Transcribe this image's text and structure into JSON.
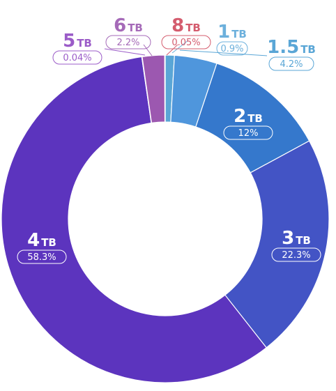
{
  "chart_data": {
    "type": "pie",
    "variant": "donut",
    "slices": [
      {
        "num": "1",
        "unit": "TB",
        "pct_label": "0.9%",
        "value": 0.9,
        "color": "#5aa6d6",
        "label_color": "#6cb0dc",
        "label_side": "outside"
      },
      {
        "num": "1.5",
        "unit": "TB",
        "pct_label": "4.2%",
        "value": 4.2,
        "color": "#4f96dc",
        "label_color": "#5aa6d6",
        "label_side": "outside"
      },
      {
        "num": "2",
        "unit": "TB",
        "pct_label": "12%",
        "value": 12.0,
        "color": "#3578cc",
        "label_color": "#ffffff",
        "label_side": "inside"
      },
      {
        "num": "3",
        "unit": "TB",
        "pct_label": "22.3%",
        "value": 22.3,
        "color": "#4354c5",
        "label_color": "#ffffff",
        "label_side": "inside"
      },
      {
        "num": "4",
        "unit": "TB",
        "pct_label": "58.3%",
        "value": 58.3,
        "color": "#5c34be",
        "label_color": "#ffffff",
        "label_side": "inside"
      },
      {
        "num": "5",
        "unit": "TB",
        "pct_label": "0.04%",
        "value": 0.04,
        "color": "#8a44c0",
        "label_color": "#9b5cc8",
        "label_side": "outside"
      },
      {
        "num": "6",
        "unit": "TB",
        "pct_label": "2.2%",
        "value": 2.2,
        "color": "#9c58b0",
        "label_color": "#a56ab8",
        "label_side": "outside"
      },
      {
        "num": "8",
        "unit": "TB",
        "pct_label": "0.05%",
        "value": 0.05,
        "color": "#d04468",
        "label_color": "#d45c6e",
        "label_side": "outside"
      }
    ]
  }
}
